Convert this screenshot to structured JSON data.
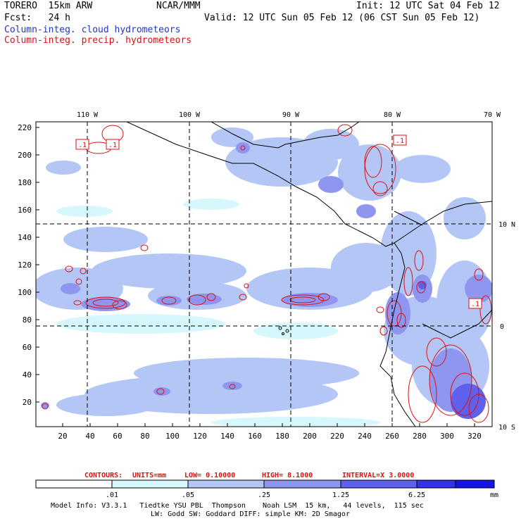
{
  "header": {
    "model": "TORERO  15km ARW",
    "center": "NCAR/MMM",
    "init": "Init: 12 UTC Sat 04 Feb 12",
    "fcst": "Fcst:   24 h",
    "valid": "Valid: 12 UTC Sun 05 Feb 12 (06 CST Sun 05 Feb 12)",
    "field1": "Column-integ. cloud hydrometeors",
    "field2": "Column-integ. precip. hydrometeors",
    "field1_color": "#2233cc",
    "field2_color": "#dd1111"
  },
  "map": {
    "lon_labels": [
      "110 W",
      "100 W",
      "90 W",
      "80 W",
      "70 W"
    ],
    "lat_labels": [
      "10 N",
      "0",
      "10 S"
    ],
    "y_ticks": [
      "220",
      "200",
      "180",
      "160",
      "140",
      "120",
      "100",
      "80",
      "60",
      "40",
      "20"
    ],
    "x_ticks": [
      "20",
      "40",
      "60",
      "80",
      "100",
      "120",
      "140",
      "160",
      "180",
      "200",
      "220",
      "240",
      "260",
      "280",
      "300",
      "320"
    ],
    "contour_labels": [
      ".1",
      ".1",
      ".1",
      ".1"
    ]
  },
  "contour_info": {
    "contours": "CONTOURS:",
    "units": "UNITS=mm",
    "low": "LOW= 0.10000",
    "high": "HIGH=  8.1000",
    "interval": "INTERVAL=X  3.0000"
  },
  "colorbar": {
    "labels": [
      ".01",
      ".05",
      ".25",
      "1.25",
      "6.25"
    ],
    "unit": "mm",
    "colors": [
      "#ffffff",
      "#d6f7fb",
      "#b3c6f5",
      "#8f96ef",
      "#5f61ec",
      "#3232ea",
      "#1515e8"
    ]
  },
  "footer": {
    "line1": "Model Info: V3.3.1   Tiedtke YSU PBL  Thompson    Noah LSM  15 km,   44 levels,  115 sec",
    "line2": "LW: Godd SW: Goddard DIFF: simple KM: 2D Smagor"
  }
}
